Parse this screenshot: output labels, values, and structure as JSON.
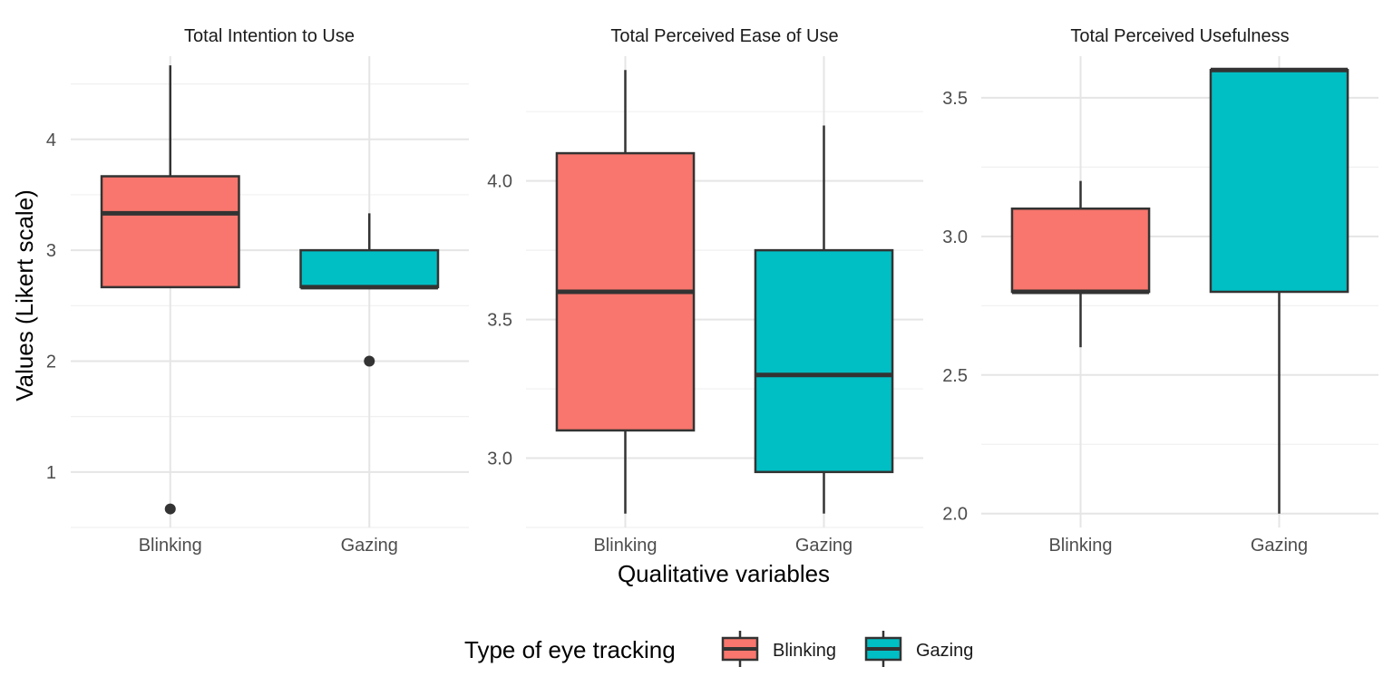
{
  "colors": {
    "Blinking": "#F8766D",
    "Gazing": "#00BFC4",
    "outline": "#333333",
    "grid_major": "#e5e5e5",
    "grid_minor": "#f0f0f0"
  },
  "axis": {
    "xlabel": "Qualitative variables",
    "ylabel": "Values (Likert scale)"
  },
  "legend": {
    "title": "Type of eye tracking",
    "position": "bottom",
    "items": [
      {
        "label": "Blinking",
        "color_key": "Blinking"
      },
      {
        "label": "Gazing",
        "color_key": "Gazing"
      }
    ]
  },
  "chart_data": [
    {
      "type": "box",
      "title": "Total Intention to Use",
      "categories": [
        "Blinking",
        "Gazing"
      ],
      "ylim": [
        0.5,
        4.75
      ],
      "yticks": [
        1,
        2,
        3,
        4
      ],
      "ytick_labels": [
        "1",
        "2",
        "3",
        "4"
      ],
      "grid": true,
      "boxes": [
        {
          "category": "Blinking",
          "whisker_low": 2.667,
          "q1": 2.667,
          "median": 3.333,
          "q3": 3.667,
          "whisker_high": 4.667,
          "outliers": [
            0.667
          ]
        },
        {
          "category": "Gazing",
          "whisker_low": 2.667,
          "q1": 2.667,
          "median": 2.667,
          "q3": 3.0,
          "whisker_high": 3.333,
          "outliers": [
            2.0
          ]
        }
      ]
    },
    {
      "type": "box",
      "title": "Total Perceived Ease of Use",
      "categories": [
        "Blinking",
        "Gazing"
      ],
      "ylim": [
        2.75,
        4.45
      ],
      "yticks": [
        3.0,
        3.5,
        4.0
      ],
      "ytick_labels": [
        "3.0",
        "3.5",
        "4.0"
      ],
      "grid": true,
      "boxes": [
        {
          "category": "Blinking",
          "whisker_low": 2.8,
          "q1": 3.1,
          "median": 3.6,
          "q3": 4.1,
          "whisker_high": 4.4,
          "outliers": []
        },
        {
          "category": "Gazing",
          "whisker_low": 2.8,
          "q1": 2.95,
          "median": 3.3,
          "q3": 3.75,
          "whisker_high": 4.2,
          "outliers": []
        }
      ]
    },
    {
      "type": "box",
      "title": "Total Perceived Usefulness",
      "categories": [
        "Blinking",
        "Gazing"
      ],
      "ylim": [
        1.95,
        3.65
      ],
      "yticks": [
        2.0,
        2.5,
        3.0,
        3.5
      ],
      "ytick_labels": [
        "2.0",
        "2.5",
        "3.0",
        "3.5"
      ],
      "grid": true,
      "boxes": [
        {
          "category": "Blinking",
          "whisker_low": 2.6,
          "q1": 2.8,
          "median": 2.8,
          "q3": 3.1,
          "whisker_high": 3.2,
          "outliers": []
        },
        {
          "category": "Gazing",
          "whisker_low": 2.0,
          "q1": 2.8,
          "median": 3.6,
          "q3": 3.6,
          "whisker_high": 3.6,
          "outliers": []
        }
      ]
    }
  ]
}
